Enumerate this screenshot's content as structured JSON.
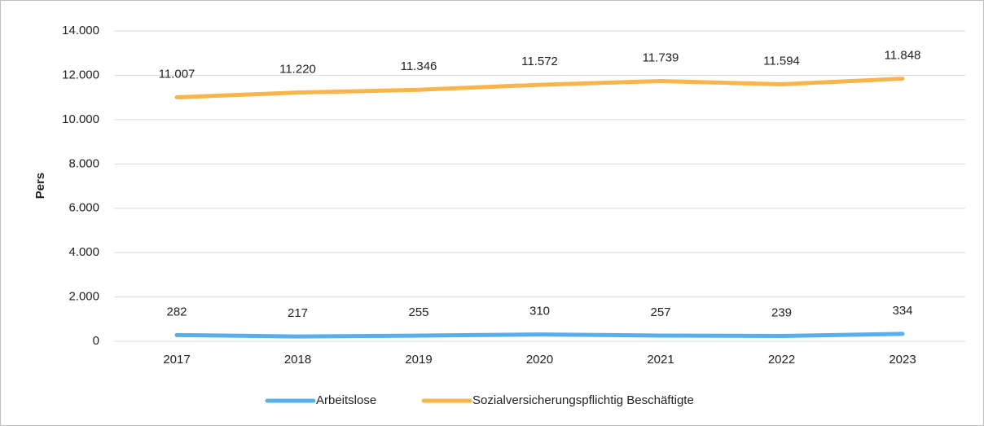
{
  "chart_data": {
    "type": "line",
    "y_label": "Pers",
    "categories": [
      "2017",
      "2018",
      "2019",
      "2020",
      "2021",
      "2022",
      "2023"
    ],
    "series": [
      {
        "name": "Arbeitslose",
        "color": "#5aaeea",
        "values": [
          282,
          217,
          255,
          310,
          257,
          239,
          334
        ]
      },
      {
        "name": "Sozialversicherungspflichtig Beschäftigte",
        "color": "#f9b54c",
        "values": [
          11007,
          11220,
          11346,
          11572,
          11739,
          11594,
          11848
        ],
        "value_labels": [
          "11.007",
          "11.220",
          "11.346",
          "11.572",
          "11.739",
          "11.594",
          "11.848"
        ]
      }
    ],
    "ylim": [
      0,
      14000
    ],
    "yticks": [
      0,
      {
        "value": 2000,
        "label": "2.000"
      },
      {
        "value": 4000,
        "label": "4.000"
      },
      {
        "value": 6000,
        "label": "6.000"
      },
      {
        "value": 8000,
        "label": "8.000"
      },
      {
        "value": 10000,
        "label": "10.000"
      },
      {
        "value": 12000,
        "label": "12.000"
      },
      {
        "value": 14000,
        "label": "14.000"
      }
    ],
    "grid": true,
    "legend": "bottom"
  }
}
